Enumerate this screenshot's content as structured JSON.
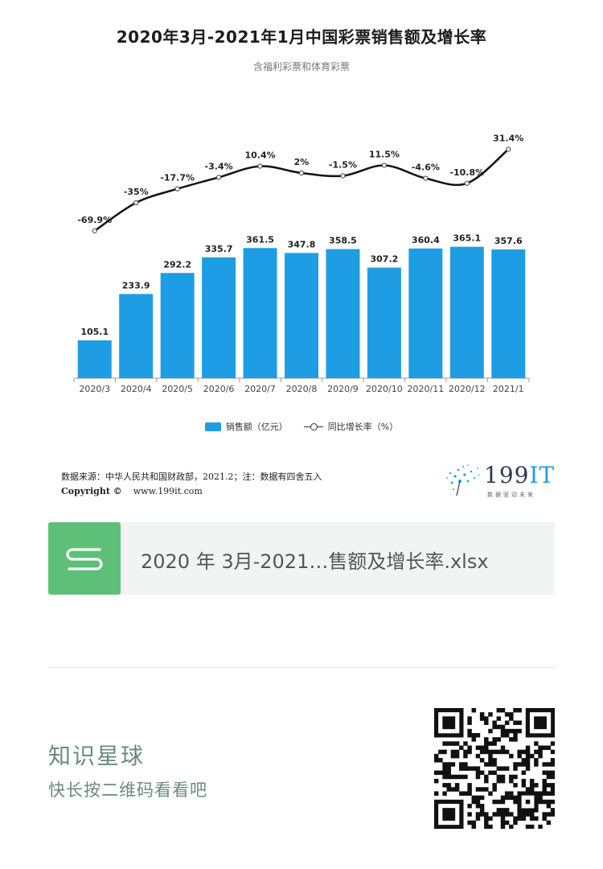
{
  "chart_data": {
    "type": "bar",
    "title": "2020年3月-2021年1月中国彩票销售额及增长率",
    "subtitle": "含福利彩票和体育彩票",
    "categories": [
      "2020/3",
      "2020/4",
      "2020/5",
      "2020/6",
      "2020/7",
      "2020/8",
      "2020/9",
      "2020/10",
      "2020/11",
      "2020/12",
      "2021/1"
    ],
    "series": [
      {
        "name": "销售额（亿元）",
        "type": "bar",
        "values": [
          105.1,
          233.9,
          292.2,
          335.7,
          361.5,
          347.8,
          358.5,
          307.2,
          360.4,
          365.1,
          357.6
        ],
        "labels": [
          "105.1",
          "233.9",
          "292.2",
          "335.7",
          "361.5",
          "347.8",
          "358.5",
          "307.2",
          "360.4",
          "365.1",
          "357.6"
        ]
      },
      {
        "name": "同比增长率（%）",
        "type": "line",
        "values": [
          -69.9,
          -35,
          -17.7,
          -3.4,
          10.4,
          2,
          -1.5,
          11.5,
          -4.6,
          -10.8,
          31.4
        ],
        "labels": [
          "-69.9%",
          "-35%",
          "-17.7%",
          "-3.4%",
          "10.4%",
          "2%",
          "-1.5%",
          "11.5%",
          "-4.6%",
          "-10.8%",
          "31.4%"
        ]
      }
    ],
    "bar_color": "#1f9de4",
    "line_color": "#111111",
    "legend_position": "bottom",
    "grid": false
  },
  "legend": {
    "bar_label": "销售额（亿元）",
    "line_label": "同比增长率（%）"
  },
  "footer": {
    "source": "数据来源：中华人民共和国财政部，2021.2；注：数据有四舍五入",
    "copyright_label": "Copyright ©",
    "copyright_site": "www.199it.com"
  },
  "logo": {
    "text_num": "199",
    "text_it": "IT",
    "tagline": "数据驱动未来"
  },
  "file": {
    "icon": "spreadsheet-s-icon",
    "icon_color": "#5ebf79",
    "name": "2020 年 3月-2021…售额及增长率.xlsx"
  },
  "planet": {
    "title": "知识星球",
    "hint": "快长按二维码看看吧",
    "text_color": "#6b8a7e"
  },
  "qr": {
    "icon": "qr-code-icon"
  }
}
